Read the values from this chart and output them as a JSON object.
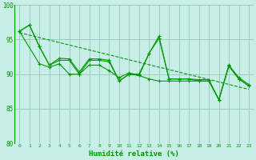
{
  "xlabel": "Humidité relative (%)",
  "xlim": [
    -0.5,
    23.5
  ],
  "ylim": [
    80,
    100
  ],
  "yticks": [
    80,
    85,
    90,
    95,
    100
  ],
  "xticks": [
    0,
    1,
    2,
    3,
    4,
    5,
    6,
    7,
    8,
    9,
    10,
    11,
    12,
    13,
    14,
    15,
    16,
    17,
    18,
    19,
    20,
    21,
    22,
    23
  ],
  "background_color": "#c8eee8",
  "grid_color": "#99ccbb",
  "line_color": "#009900",
  "line1_x": [
    0,
    1,
    2,
    3,
    4,
    5,
    6,
    7,
    8,
    9,
    10,
    11,
    12,
    13,
    14,
    15,
    16,
    17,
    18,
    19,
    20,
    21,
    22,
    23
  ],
  "line1_y": [
    96.2,
    97.1,
    94.0,
    91.3,
    92.3,
    92.2,
    90.3,
    92.2,
    92.2,
    92.0,
    89.0,
    90.0,
    90.0,
    93.0,
    95.5,
    89.3,
    89.3,
    89.3,
    89.2,
    89.2,
    86.3,
    91.3,
    89.5,
    88.5
  ],
  "line2_x": [
    0,
    1,
    2,
    3,
    4,
    5,
    6,
    7,
    8,
    9,
    10,
    11,
    12,
    13,
    14,
    15,
    16,
    17,
    18,
    19,
    20,
    21,
    22,
    23
  ],
  "line2_y": [
    96.2,
    97.1,
    94.0,
    91.3,
    92.0,
    92.0,
    90.0,
    92.0,
    92.0,
    91.8,
    89.0,
    90.0,
    89.8,
    93.0,
    95.2,
    89.3,
    89.3,
    89.3,
    89.0,
    89.0,
    86.3,
    91.2,
    89.3,
    88.3
  ],
  "line3_x": [
    0,
    2,
    3,
    4,
    5,
    6,
    7,
    8,
    9,
    10,
    11,
    12,
    13,
    14,
    15,
    16,
    17,
    18,
    19,
    20,
    21,
    22,
    23
  ],
  "line3_y": [
    96.2,
    91.5,
    91.0,
    91.5,
    90.0,
    90.0,
    91.3,
    91.3,
    90.5,
    89.5,
    90.2,
    89.8,
    89.3,
    89.0,
    89.0,
    89.0,
    89.0,
    89.0,
    89.0,
    86.3,
    91.2,
    89.3,
    88.3
  ],
  "trend_x": [
    0,
    23
  ],
  "trend_y": [
    96.0,
    87.8
  ],
  "figsize": [
    3.2,
    2.0
  ],
  "dpi": 100
}
